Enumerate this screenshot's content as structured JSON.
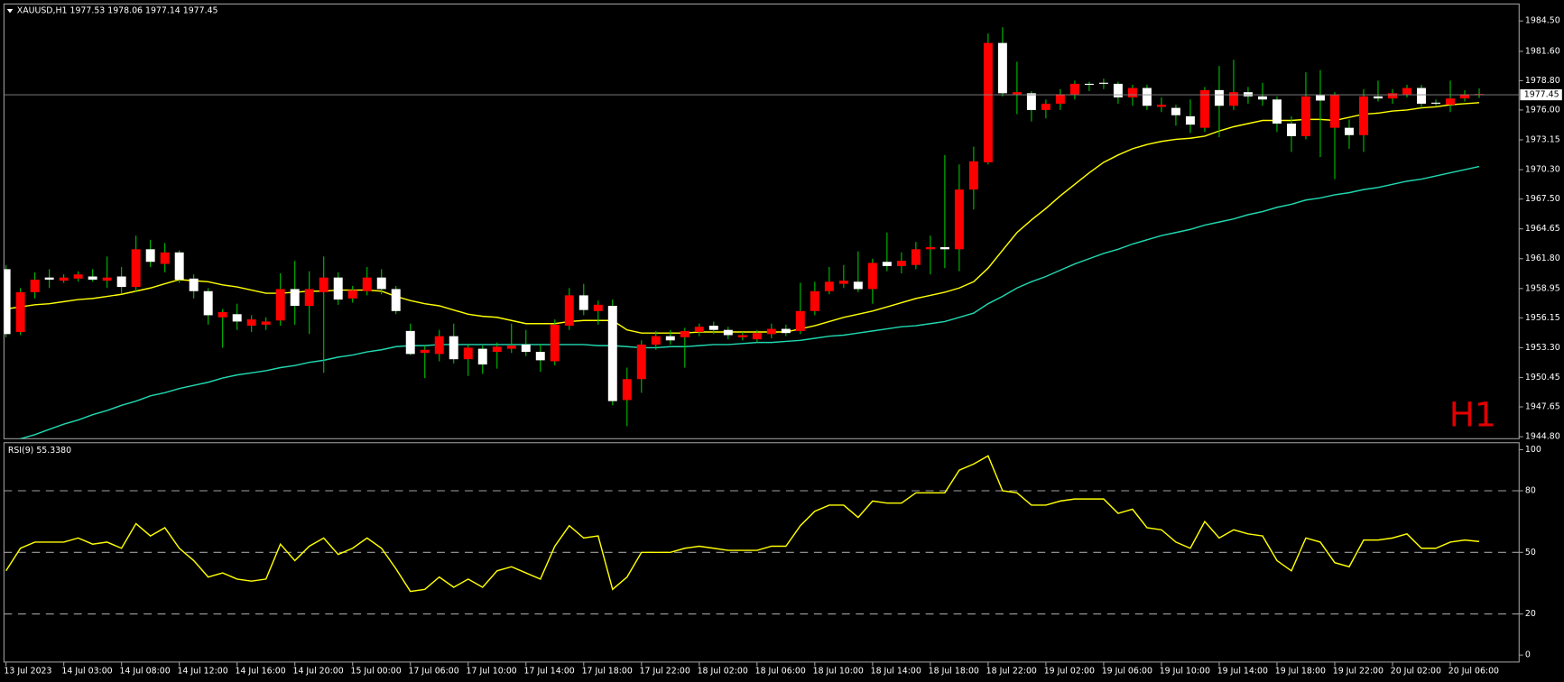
{
  "chart_data": [
    {
      "type": "candlestick",
      "title": "XAUUSD,H1  1977.53 1978.06 1977.14 1977.45",
      "watermark": "H1",
      "categories": [
        "13 Jul 2023",
        null,
        null,
        null,
        "14 Jul 03:00",
        null,
        null,
        null,
        "14 Jul 08:00",
        null,
        null,
        null,
        "14 Jul 12:00",
        null,
        null,
        null,
        "14 Jul 16:00",
        null,
        null,
        null,
        "14 Jul 20:00",
        null,
        null,
        null,
        "15 Jul 00:00",
        null,
        null,
        null,
        "17 Jul 06:00",
        null,
        null,
        null,
        "17 Jul 10:00",
        null,
        null,
        null,
        "17 Jul 14:00",
        null,
        null,
        null,
        "17 Jul 18:00",
        null,
        null,
        null,
        "17 Jul 22:00",
        null,
        null,
        null,
        "18 Jul 02:00",
        null,
        null,
        null,
        "18 Jul 06:00",
        null,
        null,
        null,
        "18 Jul 10:00",
        null,
        null,
        null,
        "18 Jul 14:00",
        null,
        null,
        null,
        "18 Jul 18:00",
        null,
        null,
        null,
        "18 Jul 22:00",
        null,
        null,
        null,
        "19 Jul 02:00",
        null,
        null,
        null,
        "19 Jul 06:00",
        null,
        null,
        null,
        "19 Jul 10:00",
        null,
        null,
        null,
        "19 Jul 14:00",
        null,
        null,
        null,
        "19 Jul 18:00",
        null,
        null,
        null,
        "19 Jul 22:00",
        null,
        null,
        null,
        "20 Jul 02:00",
        null,
        null,
        null,
        "20 Jul 06:00",
        null,
        null
      ],
      "open": [
        1954.6,
        1958.6,
        1959.8,
        1959.8,
        1960.0,
        1960.3,
        1959.8,
        1960.0,
        1959.1,
        1962.7,
        1961.5,
        1962.4,
        1959.8,
        1958.7,
        1956.4,
        1956.7,
        1955.8,
        1956.0,
        1955.8,
        1958.9,
        1957.3,
        1958.9,
        1960.0,
        1957.9,
        1958.8,
        1960.0,
        1958.9,
        1956.8,
        1952.7,
        1953.1,
        1954.4,
        1952.2,
        1953.3,
        1951.7,
        1953.4,
        1953.5,
        1952.9,
        1952.1,
        1955.5,
        1958.3,
        1956.9,
        1957.4,
        1948.2,
        1950.3,
        1953.6,
        1954.4,
        1954.0,
        1954.9,
        1955.3,
        1955.0,
        1954.5,
        1954.5,
        1954.7,
        1955.1,
        1954.7,
        1956.8,
        1958.7,
        1959.6,
        1959.7,
        1958.9,
        1961.4,
        1961.1,
        1961.6,
        1962.7,
        1962.9,
        1962.7,
        1968.4,
        1971.1,
        1982.4,
        1977.6,
        1977.7,
        1976.0,
        1976.6,
        1977.5,
        1978.5,
        1978.4,
        1978.5,
        1977.2,
        1978.1,
        1976.4,
        1976.5,
        1975.5,
        1974.6,
        1977.9,
        1976.4,
        1977.7,
        1977.3,
        1977.0,
        1974.7,
        1973.5,
        1977.3,
        1976.9,
        1977.4,
        1973.6,
        1977.3,
        1977.1,
        1977.6,
        1978.1,
        1976.6,
        1976.6,
        1977.1,
        1977.5,
        1977.53
      ],
      "high": [
        1961.2,
        1959.0,
        1960.5,
        1960.8,
        1960.3,
        1960.6,
        1960.8,
        1962.0,
        1961.0,
        1964.0,
        1963.6,
        1963.3,
        1962.6,
        1960.3,
        1959.0,
        1957.0,
        1957.5,
        1956.4,
        1956.2,
        1960.4,
        1961.6,
        1960.6,
        1962.0,
        1960.5,
        1959.2,
        1961.0,
        1960.8,
        1959.2,
        1955.6,
        1953.5,
        1955.0,
        1955.6,
        1953.6,
        1953.5,
        1953.8,
        1955.6,
        1955.0,
        1953.6,
        1956.0,
        1959.0,
        1959.4,
        1957.8,
        1957.9,
        1951.4,
        1954.0,
        1954.9,
        1955.0,
        1955.2,
        1955.6,
        1955.8,
        1955.3,
        1954.8,
        1955.0,
        1955.6,
        1955.5,
        1959.5,
        1959.6,
        1961.0,
        1961.2,
        1962.5,
        1961.8,
        1964.3,
        1962.4,
        1963.4,
        1964.0,
        1971.7,
        1970.8,
        1972.5,
        1983.3,
        1983.9,
        1980.6,
        1977.8,
        1977.0,
        1978.0,
        1978.8,
        1978.7,
        1979.0,
        1978.7,
        1978.4,
        1978.4,
        1977.2,
        1976.5,
        1977.0,
        1978.2,
        1980.2,
        1980.8,
        1978.2,
        1978.6,
        1977.3,
        1975.4,
        1979.6,
        1979.8,
        1977.7,
        1975.1,
        1978.0,
        1978.8,
        1978.0,
        1978.4,
        1978.4,
        1977.0,
        1978.8,
        1977.9,
        1978.06
      ],
      "low": [
        1954.3,
        1954.5,
        1958.0,
        1959.0,
        1959.5,
        1959.6,
        1959.6,
        1959.0,
        1958.5,
        1958.6,
        1961.0,
        1960.5,
        1959.5,
        1958.0,
        1955.5,
        1953.3,
        1955.0,
        1954.8,
        1955.0,
        1955.4,
        1955.5,
        1954.6,
        1950.9,
        1957.4,
        1957.6,
        1958.3,
        1958.4,
        1956.5,
        1952.6,
        1950.4,
        1952.0,
        1951.8,
        1950.6,
        1950.8,
        1951.3,
        1952.8,
        1952.5,
        1951.0,
        1951.6,
        1955.0,
        1956.4,
        1955.5,
        1947.8,
        1945.8,
        1949.0,
        1953.1,
        1953.6,
        1951.4,
        1954.4,
        1954.6,
        1954.1,
        1954.0,
        1953.8,
        1954.2,
        1954.4,
        1954.6,
        1956.4,
        1958.4,
        1959.0,
        1958.6,
        1957.5,
        1960.6,
        1960.4,
        1960.8,
        1960.3,
        1960.9,
        1960.6,
        1966.5,
        1970.8,
        1977.3,
        1975.6,
        1974.9,
        1975.2,
        1976.0,
        1977.0,
        1977.8,
        1978.0,
        1976.6,
        1976.4,
        1976.0,
        1975.8,
        1974.5,
        1973.8,
        1973.9,
        1973.4,
        1976.0,
        1976.6,
        1976.4,
        1973.9,
        1972.0,
        1973.2,
        1971.5,
        1969.4,
        1972.3,
        1972.0,
        1976.8,
        1976.6,
        1977.2,
        1976.2,
        1976.4,
        1975.8,
        1976.8,
        1977.14
      ],
      "close": [
        1960.8,
        1954.8,
        1958.6,
        1960.0,
        1959.7,
        1959.9,
        1960.1,
        1959.7,
        1960.1,
        1959.1,
        1962.7,
        1961.3,
        1962.4,
        1959.9,
        1958.7,
        1956.2,
        1956.5,
        1955.4,
        1955.5,
        1955.9,
        1958.9,
        1957.3,
        1958.6,
        1960.0,
        1958.0,
        1958.7,
        1960.0,
        1958.9,
        1954.9,
        1952.8,
        1952.7,
        1954.4,
        1952.2,
        1953.2,
        1952.9,
        1953.2,
        1953.6,
        1952.9,
        1952.0,
        1955.4,
        1958.3,
        1956.8,
        1957.3,
        1948.3,
        1950.3,
        1953.6,
        1954.4,
        1954.3,
        1954.8,
        1955.4,
        1955.0,
        1954.3,
        1954.1,
        1954.6,
        1955.1,
        1954.9,
        1956.8,
        1958.7,
        1959.4,
        1959.6,
        1958.9,
        1961.5,
        1961.1,
        1961.2,
        1962.7,
        1962.9,
        1962.7,
        1968.4,
        1971.0,
        1982.4,
        1977.5,
        1977.6,
        1976.0,
        1976.6,
        1977.5,
        1978.5,
        1978.6,
        1978.5,
        1977.2,
        1978.1,
        1976.3,
        1976.2,
        1975.4,
        1974.3,
        1977.9,
        1976.4,
        1977.7,
        1977.3,
        1977.0,
        1974.7,
        1973.5,
        1977.4,
        1974.3,
        1974.3,
        1973.6,
        1977.3,
        1977.1,
        1977.5,
        1978.1,
        1976.7,
        1976.5,
        1977.1,
        1977.45
      ],
      "up_color": "#ffffff",
      "down_color": "#ff0000",
      "wick_color": "#00c000",
      "lines": [
        {
          "color": "#ffff00",
          "values": [
            1957.0,
            1957.2,
            1957.4,
            1957.5,
            1957.7,
            1957.9,
            1958.0,
            1958.2,
            1958.4,
            1958.7,
            1959.0,
            1959.4,
            1959.8,
            1959.7,
            1959.6,
            1959.3,
            1959.1,
            1958.8,
            1958.5,
            1958.5,
            1958.6,
            1958.7,
            1958.7,
            1958.8,
            1958.8,
            1958.8,
            1958.7,
            1958.2,
            1957.8,
            1957.5,
            1957.3,
            1956.9,
            1956.5,
            1956.3,
            1956.2,
            1955.9,
            1955.6,
            1955.6,
            1955.6,
            1955.8,
            1955.9,
            1955.9,
            1955.9,
            1955.0,
            1954.7,
            1954.7,
            1954.7,
            1954.7,
            1954.8,
            1954.8,
            1954.8,
            1954.8,
            1954.8,
            1954.8,
            1954.8,
            1955.1,
            1955.4,
            1955.8,
            1956.2,
            1956.5,
            1956.8,
            1957.2,
            1957.6,
            1958.0,
            1958.3,
            1958.6,
            1959.0,
            1959.6,
            1960.9,
            1962.6,
            1964.3,
            1965.5,
            1966.6,
            1967.8,
            1968.9,
            1970.0,
            1971.0,
            1971.7,
            1972.3,
            1972.7,
            1973.0,
            1973.2,
            1973.3,
            1973.5,
            1974.0,
            1974.4,
            1974.7,
            1975.0,
            1975.0,
            1975.0,
            1975.1,
            1975.1,
            1975.0,
            1975.3,
            1975.6,
            1975.7,
            1975.9,
            1976.0,
            1976.2,
            1976.3,
            1976.5,
            1976.6,
            1976.7
          ]
        },
        {
          "color": "#20d8b0",
          "values": [
            1944.1,
            1944.6,
            1945.0,
            1945.5,
            1946.0,
            1946.4,
            1946.9,
            1947.3,
            1947.8,
            1948.2,
            1948.7,
            1949.0,
            1949.4,
            1949.7,
            1950.0,
            1950.4,
            1950.7,
            1950.9,
            1951.1,
            1951.4,
            1951.6,
            1951.9,
            1952.1,
            1952.4,
            1952.6,
            1952.9,
            1953.1,
            1953.4,
            1953.5,
            1953.5,
            1953.6,
            1953.6,
            1953.6,
            1953.6,
            1953.6,
            1953.6,
            1953.6,
            1953.6,
            1953.6,
            1953.6,
            1953.6,
            1953.5,
            1953.5,
            1953.4,
            1953.3,
            1953.3,
            1953.4,
            1953.4,
            1953.5,
            1953.6,
            1953.6,
            1953.7,
            1953.8,
            1953.8,
            1953.9,
            1954.0,
            1954.2,
            1954.4,
            1954.5,
            1954.7,
            1954.9,
            1955.1,
            1955.3,
            1955.4,
            1955.6,
            1955.8,
            1956.2,
            1956.6,
            1957.5,
            1958.2,
            1959.0,
            1959.6,
            1960.1,
            1960.7,
            1961.3,
            1961.8,
            1962.3,
            1962.7,
            1963.2,
            1963.6,
            1964.0,
            1964.3,
            1964.6,
            1965.0,
            1965.3,
            1965.6,
            1966.0,
            1966.3,
            1966.7,
            1967.0,
            1967.4,
            1967.6,
            1967.9,
            1968.1,
            1968.4,
            1968.6,
            1968.9,
            1969.2,
            1969.4,
            1969.7,
            1970.0,
            1970.3,
            1970.6
          ]
        }
      ],
      "current_price": 1977.45,
      "ylim": [
        1944.61,
        1986.12
      ],
      "yticks": [
        {
          "value": 1984.5,
          "label": "1984.50"
        },
        {
          "value": 1981.6,
          "label": "1981.60"
        },
        {
          "value": 1978.8,
          "label": "1978.80"
        },
        {
          "value": 1976,
          "label": "1976.00"
        },
        1973.15,
        {
          "value": 1970.3,
          "label": "1970.30"
        },
        {
          "value": 1967.5,
          "label": "1967.50"
        },
        1964.65,
        {
          "value": 1961.8,
          "label": "1961.80"
        },
        1958.95,
        1956.15,
        {
          "value": 1953.3,
          "label": "1953.30"
        },
        1950.45,
        1947.65,
        {
          "value": 1944.8,
          "label": "1944.80"
        }
      ]
    },
    {
      "type": "line",
      "title": "RSI(9) 55.3380",
      "color": "#ffff00",
      "values": [
        41,
        52,
        55,
        55,
        55,
        57,
        54,
        55,
        52,
        64,
        58,
        62,
        52,
        46,
        38,
        40,
        37,
        36,
        37,
        54,
        46,
        53,
        57,
        49,
        52,
        57,
        52,
        42,
        31,
        32,
        38,
        33,
        37,
        33,
        41,
        43,
        40,
        37,
        53,
        63,
        57,
        58,
        32,
        38,
        50,
        50,
        50,
        52,
        53,
        52,
        51,
        51,
        51,
        53,
        53,
        63,
        70,
        73,
        73,
        67,
        75,
        74,
        74,
        79,
        79,
        79,
        90,
        93,
        97,
        80,
        79,
        73,
        73,
        75,
        76,
        76,
        76,
        69,
        71,
        62,
        61,
        55,
        52,
        65,
        57,
        61,
        59,
        58,
        46,
        41,
        57,
        55,
        45,
        43,
        56,
        56,
        57,
        59,
        52,
        52,
        55,
        56,
        55.3
      ],
      "levels": [
        20,
        50,
        80
      ],
      "ylim": [
        -3.4,
        103.4
      ],
      "yticks": [
        0,
        20,
        50,
        80,
        100
      ]
    }
  ]
}
